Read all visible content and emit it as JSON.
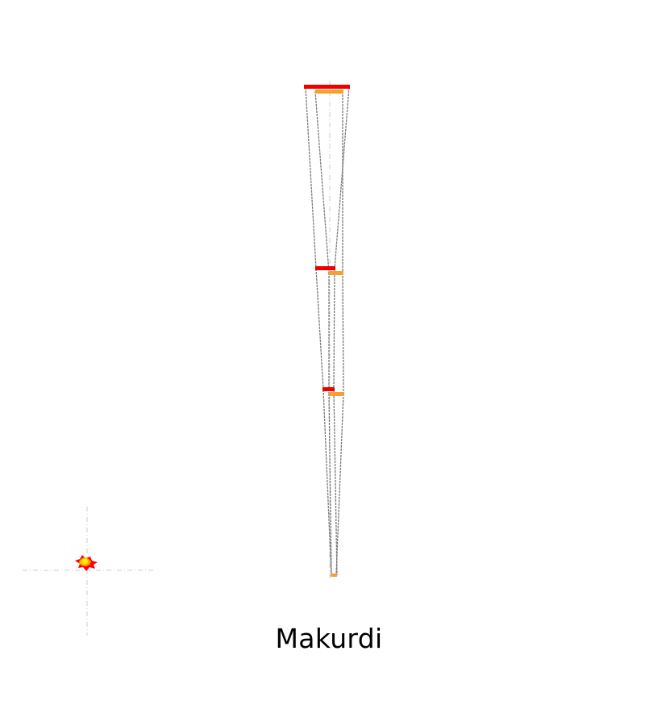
{
  "label": "Makurdi",
  "colors": {
    "background": "#ffffff",
    "series_a": "#ee0000",
    "series_b": "#f5a033",
    "connector": "#7a7a7a",
    "guide": "#cccccc",
    "marker_outer": "#ff0000",
    "marker_mid": "#ffaa00",
    "marker_core": "#ffee00"
  }
}
